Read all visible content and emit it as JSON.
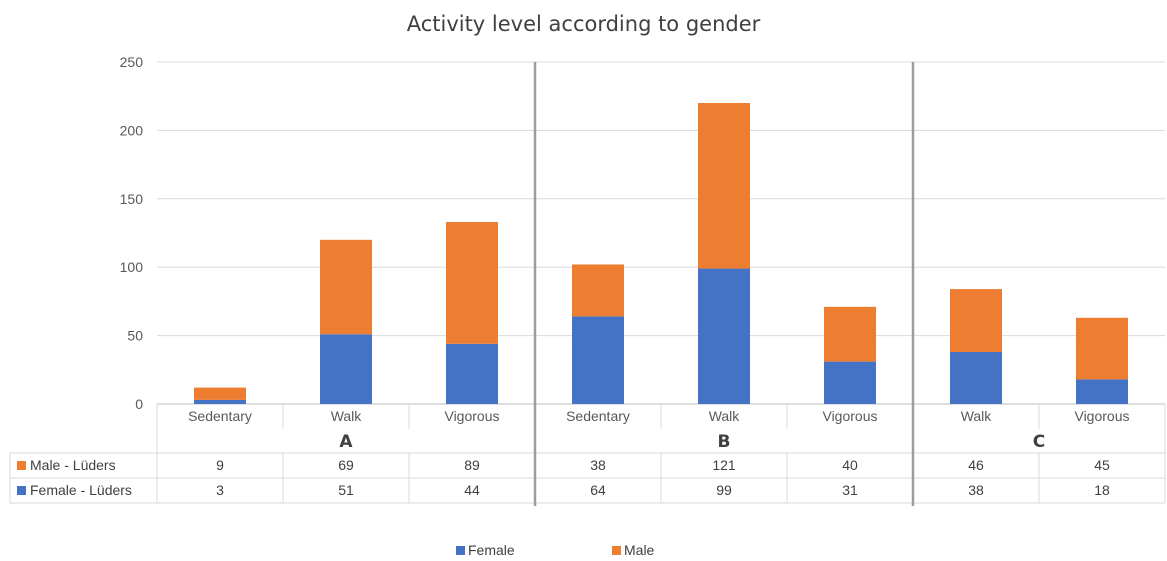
{
  "chart_data": {
    "type": "bar",
    "stacked": true,
    "title": "Activity level according to gender",
    "groups": [
      {
        "name": "A",
        "categories": [
          "Sedentary",
          "Walk",
          "Vigorous"
        ]
      },
      {
        "name": "B",
        "categories": [
          "Sedentary",
          "Walk",
          "Vigorous"
        ]
      },
      {
        "name": "C",
        "categories": [
          "Walk",
          "Vigorous"
        ]
      }
    ],
    "series": [
      {
        "name": "Female",
        "table_label": "Female - Lüders",
        "color": "#4472C4",
        "values": [
          3,
          51,
          44,
          64,
          99,
          31,
          38,
          18
        ]
      },
      {
        "name": "Male",
        "table_label": "Male - Lüders",
        "color": "#ED7D31",
        "values": [
          9,
          69,
          89,
          38,
          121,
          40,
          46,
          45
        ]
      }
    ],
    "ylim": [
      0,
      250
    ],
    "yticks": [
      0,
      50,
      100,
      150,
      200,
      250
    ],
    "grid": true,
    "data_table": true,
    "legend_position": "bottom"
  }
}
